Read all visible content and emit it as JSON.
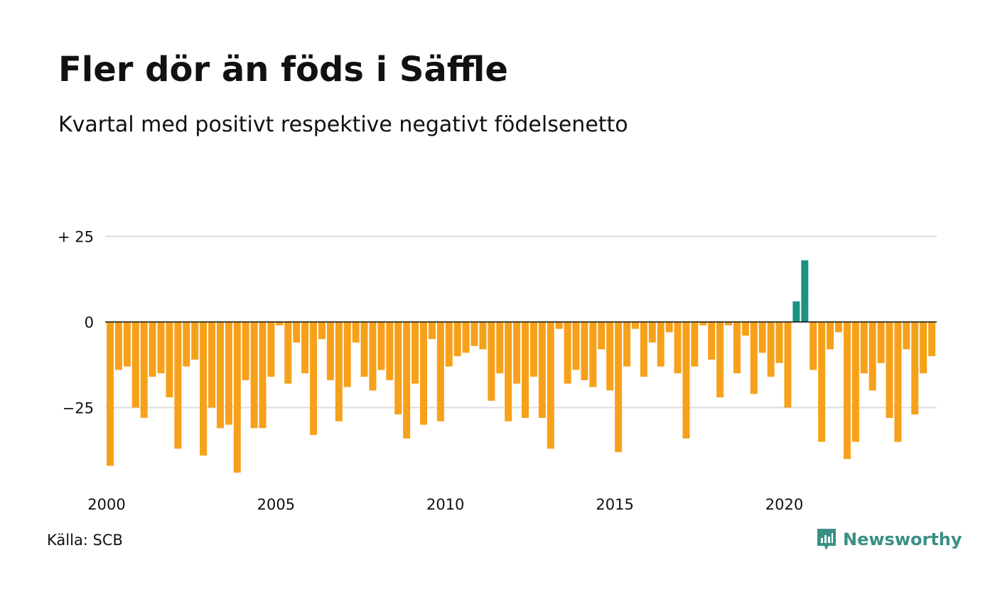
{
  "header": {
    "title": "Fler dör än föds i Säffle",
    "subtitle": "Kvartal med positivt respektive negativt födelsenetto"
  },
  "footer": {
    "source": "Källa: SCB",
    "brand": "Newsworthy",
    "brand_icon": "newsworthy-logo-icon"
  },
  "colors": {
    "negative": "#f7a11a",
    "positive": "#1a9383",
    "grid": "#dddddd",
    "zero_line": "#111111",
    "brand": "#3a8f86"
  },
  "chart_data": {
    "type": "bar",
    "title": "Fler dör än föds i Säffle",
    "subtitle": "Kvartal med positivt respektive negativt födelsenetto",
    "xlabel": "",
    "ylabel": "",
    "ylim": [
      -45,
      30
    ],
    "y_ticks": [
      {
        "value": 25,
        "label": "+ 25"
      },
      {
        "value": 0,
        "label": "0"
      },
      {
        "value": -25,
        "label": "−25"
      }
    ],
    "x_ticks": [
      {
        "value": 2000,
        "label": "2000"
      },
      {
        "value": 2005,
        "label": "2005"
      },
      {
        "value": 2010,
        "label": "2010"
      },
      {
        "value": 2015,
        "label": "2015"
      },
      {
        "value": 2020,
        "label": "2020"
      }
    ],
    "x_start": 2000,
    "grid": true,
    "legend": "none",
    "values": [
      -42,
      -14,
      -13,
      -25,
      -28,
      -16,
      -15,
      -22,
      -37,
      -13,
      -11,
      -39,
      -25,
      -31,
      -30,
      -44,
      -17,
      -31,
      -31,
      -16,
      -1,
      -18,
      -6,
      -15,
      -33,
      -5,
      -17,
      -29,
      -19,
      -6,
      -16,
      -20,
      -14,
      -17,
      -27,
      -34,
      -18,
      -30,
      -5,
      -29,
      -13,
      -10,
      -9,
      -7,
      -8,
      -23,
      -15,
      -29,
      -18,
      -28,
      -16,
      -28,
      -37,
      -2,
      -18,
      -14,
      -17,
      -19,
      -8,
      -20,
      -38,
      -13,
      -2,
      -16,
      -6,
      -13,
      -3,
      -15,
      -34,
      -13,
      -1,
      -11,
      -22,
      -1,
      -15,
      -4,
      -21,
      -9,
      -16,
      -12,
      -25,
      6,
      18,
      -14,
      -35,
      -8,
      -3,
      -40,
      -35,
      -15,
      -20,
      -12,
      -28,
      -35,
      -8,
      -27,
      -15,
      -10
    ]
  }
}
